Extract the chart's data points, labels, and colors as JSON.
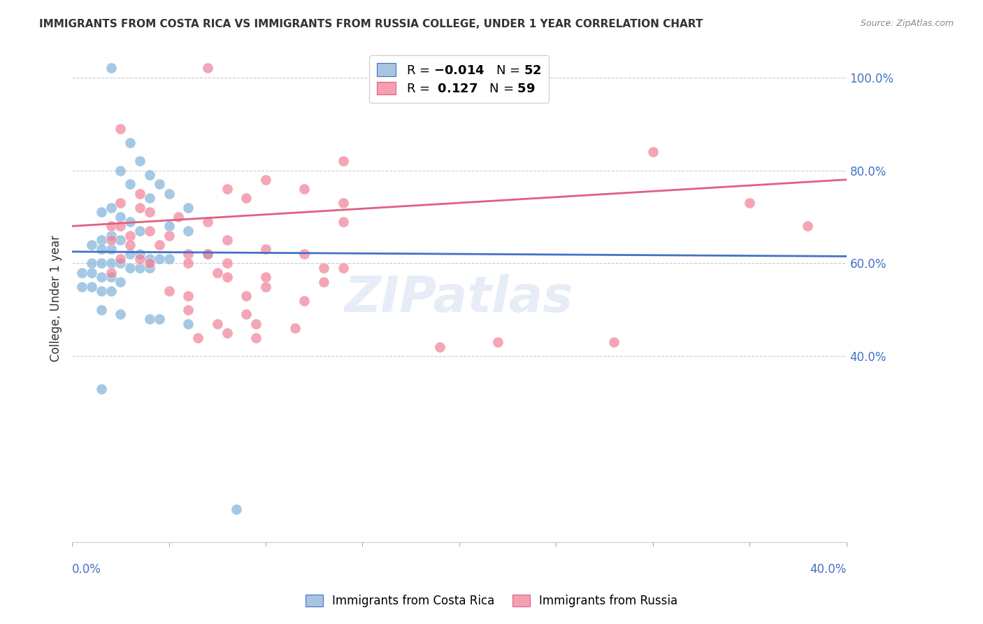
{
  "title": "IMMIGRANTS FROM COSTA RICA VS IMMIGRANTS FROM RUSSIA COLLEGE, UNDER 1 YEAR CORRELATION CHART",
  "source": "Source: ZipAtlas.com",
  "ylabel": "College, Under 1 year",
  "right_yticks": [
    "100.0%",
    "80.0%",
    "60.0%",
    "40.0%"
  ],
  "right_ytick_vals": [
    1.0,
    0.8,
    0.6,
    0.4
  ],
  "xmin": 0.0,
  "xmax": 0.4,
  "ymin": 0.0,
  "ymax": 1.05,
  "watermark": "ZIPatlas",
  "costa_rica_color": "#7fb3d9",
  "russia_color": "#f08098",
  "cr_trend": [
    0.625,
    0.615
  ],
  "ru_trend": [
    0.68,
    0.78
  ],
  "costa_rica_scatter": [
    [
      0.02,
      1.02
    ],
    [
      0.03,
      0.86
    ],
    [
      0.035,
      0.82
    ],
    [
      0.025,
      0.8
    ],
    [
      0.04,
      0.79
    ],
    [
      0.03,
      0.77
    ],
    [
      0.045,
      0.77
    ],
    [
      0.05,
      0.75
    ],
    [
      0.04,
      0.74
    ],
    [
      0.06,
      0.72
    ],
    [
      0.02,
      0.72
    ],
    [
      0.015,
      0.71
    ],
    [
      0.025,
      0.7
    ],
    [
      0.03,
      0.69
    ],
    [
      0.05,
      0.68
    ],
    [
      0.035,
      0.67
    ],
    [
      0.06,
      0.67
    ],
    [
      0.02,
      0.66
    ],
    [
      0.015,
      0.65
    ],
    [
      0.025,
      0.65
    ],
    [
      0.01,
      0.64
    ],
    [
      0.015,
      0.63
    ],
    [
      0.02,
      0.63
    ],
    [
      0.03,
      0.62
    ],
    [
      0.035,
      0.62
    ],
    [
      0.04,
      0.61
    ],
    [
      0.045,
      0.61
    ],
    [
      0.05,
      0.61
    ],
    [
      0.01,
      0.6
    ],
    [
      0.015,
      0.6
    ],
    [
      0.02,
      0.6
    ],
    [
      0.025,
      0.6
    ],
    [
      0.03,
      0.59
    ],
    [
      0.035,
      0.59
    ],
    [
      0.04,
      0.59
    ],
    [
      0.005,
      0.58
    ],
    [
      0.01,
      0.58
    ],
    [
      0.015,
      0.57
    ],
    [
      0.02,
      0.57
    ],
    [
      0.025,
      0.56
    ],
    [
      0.005,
      0.55
    ],
    [
      0.01,
      0.55
    ],
    [
      0.015,
      0.54
    ],
    [
      0.02,
      0.54
    ],
    [
      0.07,
      0.62
    ],
    [
      0.015,
      0.5
    ],
    [
      0.025,
      0.49
    ],
    [
      0.04,
      0.48
    ],
    [
      0.045,
      0.48
    ],
    [
      0.06,
      0.47
    ],
    [
      0.015,
      0.33
    ],
    [
      0.085,
      0.07
    ]
  ],
  "russia_scatter": [
    [
      0.07,
      1.02
    ],
    [
      0.025,
      0.89
    ],
    [
      0.14,
      0.82
    ],
    [
      0.1,
      0.78
    ],
    [
      0.12,
      0.76
    ],
    [
      0.08,
      0.76
    ],
    [
      0.035,
      0.75
    ],
    [
      0.09,
      0.74
    ],
    [
      0.14,
      0.73
    ],
    [
      0.025,
      0.73
    ],
    [
      0.035,
      0.72
    ],
    [
      0.04,
      0.71
    ],
    [
      0.055,
      0.7
    ],
    [
      0.07,
      0.69
    ],
    [
      0.14,
      0.69
    ],
    [
      0.02,
      0.68
    ],
    [
      0.025,
      0.68
    ],
    [
      0.04,
      0.67
    ],
    [
      0.03,
      0.66
    ],
    [
      0.05,
      0.66
    ],
    [
      0.08,
      0.65
    ],
    [
      0.02,
      0.65
    ],
    [
      0.03,
      0.64
    ],
    [
      0.045,
      0.64
    ],
    [
      0.1,
      0.63
    ],
    [
      0.06,
      0.62
    ],
    [
      0.07,
      0.62
    ],
    [
      0.12,
      0.62
    ],
    [
      0.025,
      0.61
    ],
    [
      0.035,
      0.61
    ],
    [
      0.04,
      0.6
    ],
    [
      0.06,
      0.6
    ],
    [
      0.08,
      0.6
    ],
    [
      0.13,
      0.59
    ],
    [
      0.14,
      0.59
    ],
    [
      0.02,
      0.58
    ],
    [
      0.075,
      0.58
    ],
    [
      0.08,
      0.57
    ],
    [
      0.1,
      0.57
    ],
    [
      0.13,
      0.56
    ],
    [
      0.1,
      0.55
    ],
    [
      0.05,
      0.54
    ],
    [
      0.06,
      0.53
    ],
    [
      0.09,
      0.53
    ],
    [
      0.12,
      0.52
    ],
    [
      0.06,
      0.5
    ],
    [
      0.09,
      0.49
    ],
    [
      0.075,
      0.47
    ],
    [
      0.095,
      0.47
    ],
    [
      0.115,
      0.46
    ],
    [
      0.08,
      0.45
    ],
    [
      0.065,
      0.44
    ],
    [
      0.095,
      0.44
    ],
    [
      0.3,
      0.84
    ],
    [
      0.35,
      0.73
    ],
    [
      0.38,
      0.68
    ],
    [
      0.28,
      0.43
    ],
    [
      0.22,
      0.43
    ],
    [
      0.19,
      0.42
    ]
  ]
}
